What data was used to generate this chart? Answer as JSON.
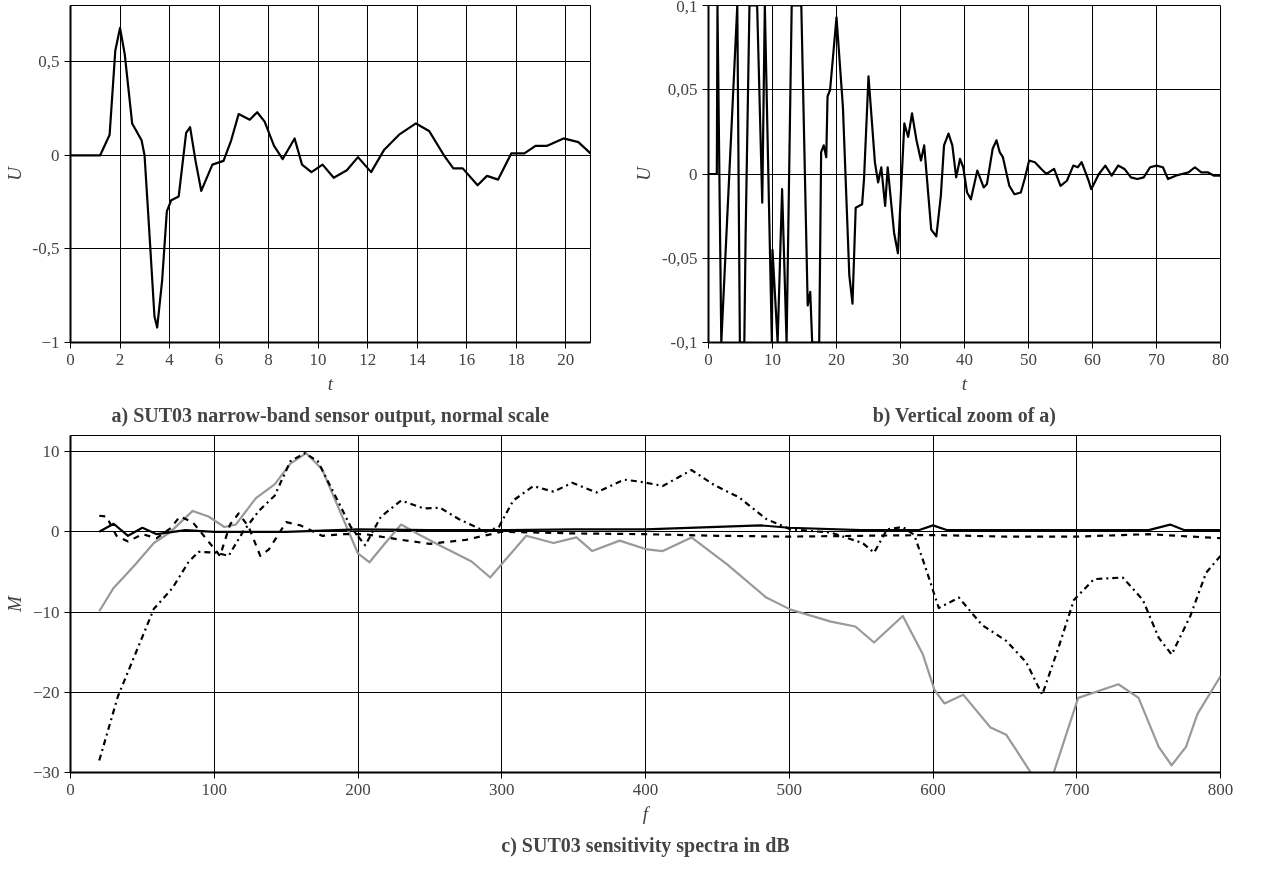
{
  "chart_data": [
    {
      "type": "line",
      "title": "a) SUT03 narrow-band sensor output, normal scale",
      "xlabel": "t",
      "ylabel": "U",
      "xlim": [
        0,
        21
      ],
      "ylim": [
        -1,
        0.8
      ],
      "xticks": [
        0,
        2,
        4,
        6,
        8,
        10,
        12,
        14,
        16,
        18,
        20
      ],
      "yticks": [
        -1,
        {
          "value": -0.5,
          "label": "-0,5"
        },
        0,
        {
          "value": 0.5,
          "label": "0,5"
        }
      ],
      "grid": true,
      "line_style": "solid",
      "series": [
        {
          "color": "#000000",
          "x": [
            0,
            1.2,
            1.58,
            1.81,
            2.0,
            2.19,
            2.49,
            2.87,
            2.99,
            3.17,
            3.39,
            3.5,
            3.7,
            3.89,
            4.07,
            4.37,
            4.67,
            4.83,
            5.05,
            5.28,
            5.73,
            6.18,
            6.49,
            6.79,
            7.24,
            7.54,
            7.84,
            8.22,
            8.57,
            9.05,
            9.35,
            9.73,
            10.18,
            10.63,
            11.16,
            11.61,
            12.14,
            12.67,
            13.27,
            13.95,
            14.48,
            15.08,
            15.46,
            15.84,
            16.44,
            16.82,
            17.27,
            17.8,
            18.33,
            18.78,
            19.23,
            19.91,
            20.51,
            21.0
          ],
          "values": [
            0,
            0,
            0.11,
            0.56,
            0.68,
            0.54,
            0.17,
            0.08,
            0,
            -0.38,
            -0.86,
            -0.92,
            -0.67,
            -0.3,
            -0.24,
            -0.22,
            0.12,
            0.15,
            -0.03,
            -0.19,
            -0.05,
            -0.03,
            0.08,
            0.22,
            0.19,
            0.23,
            0.18,
            0.05,
            -0.02,
            0.09,
            -0.05,
            -0.09,
            -0.05,
            -0.12,
            -0.08,
            -0.01,
            -0.09,
            0.03,
            0.11,
            0.17,
            0.13,
            0,
            -0.07,
            -0.07,
            -0.16,
            -0.11,
            -0.13,
            0.01,
            0.01,
            0.05,
            0.05,
            0.09,
            0.07,
            0.01
          ]
        }
      ]
    },
    {
      "type": "line",
      "title": "b) Vertical zoom of a)",
      "xlabel": "t",
      "ylabel": "U",
      "xlim": [
        0,
        80
      ],
      "ylim": [
        -0.1,
        0.1
      ],
      "xticks": [
        0,
        10,
        20,
        30,
        40,
        50,
        60,
        70,
        80
      ],
      "yticks": [
        {
          "value": -0.1,
          "label": "-0,1"
        },
        {
          "value": -0.05,
          "label": "-0,05"
        },
        0,
        {
          "value": 0.05,
          "label": "0,05"
        },
        {
          "value": 0.1,
          "label": "0,1"
        }
      ],
      "grid": true,
      "line_style": "solid",
      "series": [
        {
          "color": "#000000",
          "x": [
            0,
            1.3,
            1.4,
            2.0,
            4.5,
            4.9,
            5.6,
            5.8,
            6.4,
            7.6,
            8.4,
            8.8,
            9.9,
            10.0,
            10.8,
            11.5,
            12.2,
            13.0,
            14.5,
            15.5,
            15.9,
            16.2,
            17.3,
            17.6,
            18.0,
            18.4,
            18.6,
            19.0,
            20.0,
            21.0,
            22.0,
            22.5,
            23.0,
            24.0,
            24.3,
            25.0,
            26.0,
            26.5,
            27.0,
            27.6,
            28.0,
            29.0,
            29.6,
            30.6,
            31.2,
            31.8,
            32.5,
            33.2,
            33.7,
            34.8,
            35.6,
            36.3,
            36.8,
            37.5,
            38.1,
            38.7,
            39.3,
            39.8,
            40.4,
            41.0,
            42.0,
            43.0,
            43.5,
            44.4,
            45.0,
            45.5,
            46.0,
            47.0,
            47.8,
            48.8,
            49.4,
            50.1,
            51.0,
            52.0,
            52.8,
            54.0,
            55.0,
            56.0,
            57.0,
            57.7,
            58.3,
            59.4,
            59.8,
            61.0,
            62.0,
            63.0,
            64.0,
            65.0,
            66.0,
            67.0,
            68.0,
            69.0,
            70.0,
            71.0,
            71.8,
            73.0,
            74.0,
            75.0,
            76.0,
            77.0,
            78.0,
            79.0,
            80.0
          ],
          "values": [
            0,
            0,
            0.1,
            -0.1,
            0.1,
            -0.1,
            -0.1,
            -0.036,
            0.1,
            0.1,
            -0.017,
            0.1,
            -0.1,
            -0.045,
            -0.1,
            -0.009,
            -0.1,
            0.1,
            0.1,
            -0.078,
            -0.07,
            -0.1,
            -0.1,
            0.013,
            0.017,
            0.01,
            0.046,
            0.05,
            0.093,
            0.04,
            -0.06,
            -0.077,
            -0.02,
            -0.018,
            -0.003,
            0.058,
            0.007,
            -0.005,
            0.004,
            -0.019,
            0.004,
            -0.035,
            -0.047,
            0.03,
            0.022,
            0.036,
            0.02,
            0.008,
            0.017,
            -0.033,
            -0.037,
            -0.013,
            0.017,
            0.024,
            0.017,
            -0.002,
            0.009,
            0.004,
            -0.011,
            -0.015,
            0.002,
            -0.008,
            -0.006,
            0.015,
            0.02,
            0.013,
            0.01,
            -0.007,
            -0.012,
            -0.011,
            -0.003,
            0.008,
            0.007,
            0.003,
            0,
            0.003,
            -0.007,
            -0.004,
            0.005,
            0.004,
            0.007,
            -0.004,
            -0.009,
            0,
            0.005,
            -0.001,
            0.005,
            0.003,
            -0.002,
            -0.003,
            -0.002,
            0.004,
            0.005,
            0.004,
            -0.003,
            -0.001,
            0,
            0.001,
            0.004,
            0.001,
            0.001,
            -0.001,
            -0.001
          ]
        }
      ]
    },
    {
      "type": "line",
      "title": "c) SUT03 sensitivity spectra in dB",
      "xlabel": "f",
      "ylabel": "M",
      "xlim": [
        0,
        800
      ],
      "ylim": [
        -30,
        12
      ],
      "xticks": [
        0,
        100,
        200,
        300,
        400,
        500,
        600,
        700,
        800
      ],
      "yticks": [
        -30,
        -20,
        -10,
        0,
        10
      ],
      "grid": true,
      "series": [
        {
          "color": "#999999",
          "line_style": "solid",
          "x": [
            20,
            30,
            44,
            58,
            69,
            85,
            96,
            107,
            115,
            129,
            142,
            153,
            164,
            175,
            189,
            200,
            208,
            219,
            230,
            243,
            257,
            279,
            292,
            303,
            317,
            336,
            352,
            363,
            382,
            401,
            412,
            432,
            457,
            484,
            501,
            529,
            546,
            559,
            579,
            593,
            601,
            608,
            621,
            640,
            651,
            668,
            676,
            684,
            701,
            729,
            743,
            757,
            766,
            776,
            784,
            800
          ],
          "values": [
            -9.9,
            -7,
            -4.3,
            -1.4,
            -0.1,
            2.6,
            1.9,
            0.6,
            0.9,
            4.2,
            5.9,
            8.5,
            9.8,
            7.8,
            1.9,
            -2.7,
            -3.8,
            -1.4,
            0.9,
            -0.4,
            -1.7,
            -3.7,
            -5.7,
            -3.4,
            -0.5,
            -1.4,
            -0.7,
            -2.4,
            -1.1,
            -2.2,
            -2.4,
            -0.7,
            -4.1,
            -8.2,
            -9.7,
            -11.2,
            -11.8,
            -13.8,
            -10.5,
            -15.3,
            -19.7,
            -21.4,
            -20.3,
            -24.4,
            -25.3,
            -30,
            null,
            -30,
            -20.7,
            -19,
            -20.7,
            -26.8,
            -29.1,
            -26.8,
            -22.7,
            -18
          ]
        },
        {
          "color": "#000000",
          "line_style": "dashdot",
          "x": [
            20,
            33,
            58,
            71,
            82,
            89,
            101,
            110,
            120,
            131,
            142,
            153,
            163,
            172,
            183,
            195,
            205,
            216,
            230,
            246,
            257,
            270,
            289,
            298,
            308,
            322,
            336,
            349,
            366,
            385,
            398,
            412,
            432,
            448,
            465,
            484,
            501,
            529,
            551,
            559,
            568,
            579,
            587,
            596,
            604,
            618,
            634,
            651,
            665,
            676,
            687,
            698,
            712,
            732,
            746,
            757,
            766,
            779,
            790,
            800
          ],
          "values": [
            -28.5,
            -20.5,
            -9.6,
            -7,
            -3.8,
            -2.5,
            -2.6,
            -3,
            0,
            2.6,
            4.5,
            8.8,
            9.8,
            8.8,
            4.9,
            0.6,
            -1.7,
            1.9,
            3.9,
            2.9,
            3,
            1.6,
            0,
            0.6,
            3.9,
            5.7,
            5,
            6.1,
            4.9,
            6.5,
            6.2,
            5.7,
            7.7,
            5.8,
            4.3,
            1.6,
            0.3,
            -0.1,
            -1.4,
            -2.6,
            0.3,
            0.6,
            -0.4,
            -5.1,
            -9.5,
            -8.2,
            -11.6,
            -13.6,
            -16.3,
            -20.3,
            -14.6,
            -8.5,
            -5.9,
            -5.7,
            -8.5,
            -13.2,
            -15.3,
            -10.5,
            -5.1,
            -3
          ]
        },
        {
          "color": "#000000",
          "line_style": "dashed",
          "x": [
            20,
            25,
            32,
            40,
            50,
            60,
            70,
            76,
            85,
            95,
            104,
            111,
            117,
            124,
            132,
            138,
            150,
            160,
            175,
            190,
            205,
            230,
            250,
            275,
            300,
            350,
            400,
            450,
            500,
            550,
            600,
            650,
            700,
            750,
            800
          ],
          "values": [
            2,
            1.9,
            -0.5,
            -1.2,
            -0.3,
            -0.8,
            0.5,
            1.9,
            1.2,
            -1,
            -3,
            0.9,
            2.3,
            0.6,
            -3,
            -2.2,
            1.2,
            0.8,
            -0.5,
            -0.3,
            -0.3,
            -1,
            -1.5,
            -1,
            0,
            -0.2,
            -0.3,
            -0.5,
            -0.6,
            -0.5,
            -0.4,
            -0.6,
            -0.6,
            -0.3,
            -0.8
          ]
        },
        {
          "color": "#000000",
          "line_style": "solid",
          "x": [
            20,
            30,
            40,
            50,
            60,
            80,
            100,
            150,
            200,
            250,
            300,
            350,
            400,
            450,
            480,
            500,
            550,
            590,
            600,
            610,
            650,
            700,
            750,
            765,
            775,
            800
          ],
          "values": [
            0,
            1,
            -0.5,
            0.5,
            -0.3,
            0.2,
            0,
            0,
            0.3,
            0.2,
            0.2,
            0.3,
            0.3,
            0.6,
            0.8,
            0.5,
            0.2,
            0.2,
            0.8,
            0.2,
            0.2,
            0.2,
            0.2,
            0.9,
            0.2,
            0.2
          ]
        }
      ]
    }
  ]
}
